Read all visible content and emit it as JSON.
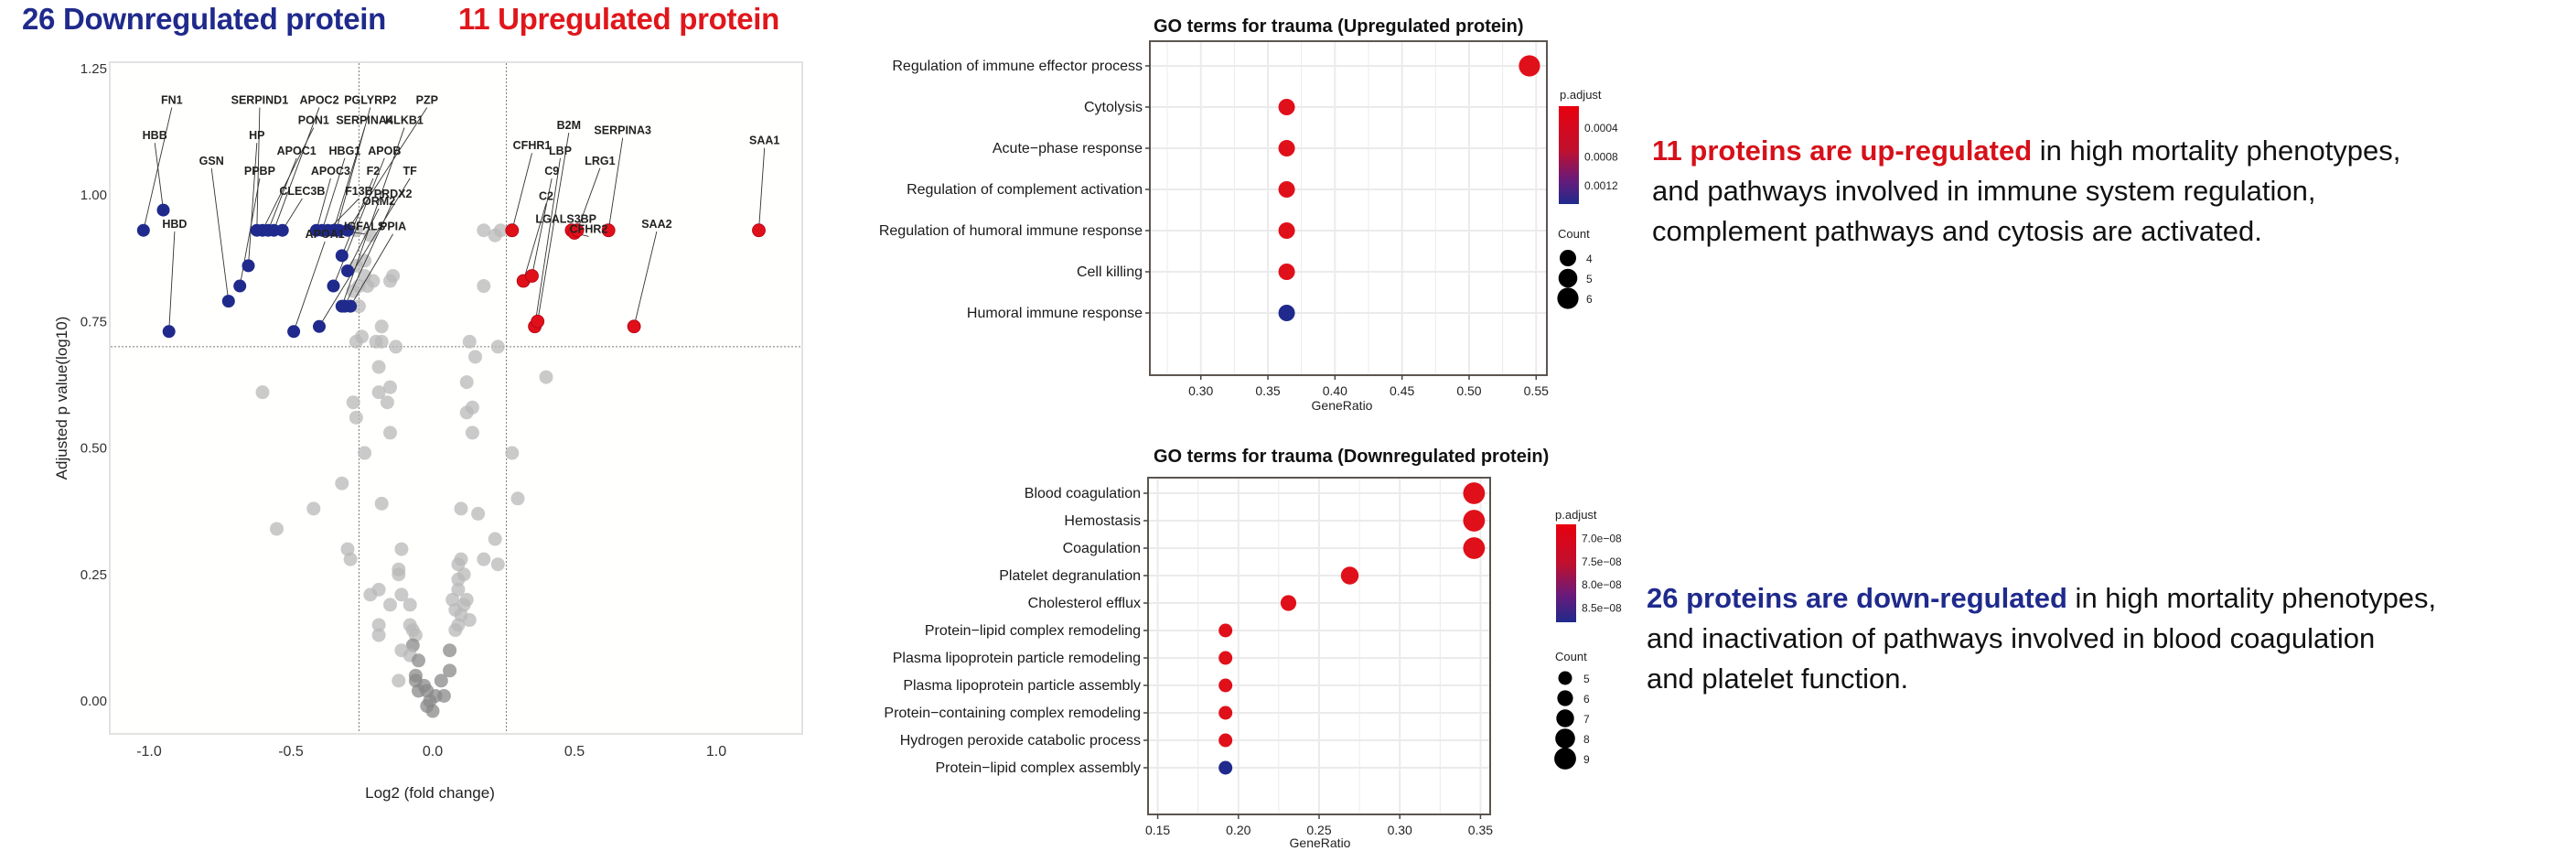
{
  "header": {
    "down_label": "26 Downregulated protein",
    "up_label": "11 Upregulated protein"
  },
  "colors": {
    "down": "#1f2a8c",
    "up": "#e0101a",
    "ns": "#b8b8b8",
    "ns_dark": "#8a8a8a"
  },
  "descriptions": {
    "up": {
      "highlight": "11 proteins are up-regulated",
      "line1_rest": " in high mortality phenotypes,",
      "line2": "and pathways involved in immune system regulation,",
      "line3": "complement pathways and cytosis are activated."
    },
    "down": {
      "highlight": "26 proteins are down-regulated",
      "line1_rest": " in high mortality phenotypes,",
      "line2": "and  inactivation of pathways involved in blood coagulation",
      "line3": "and platelet function."
    }
  },
  "chart_data": [
    {
      "type": "scatter",
      "title": "",
      "xlabel": "Log2 (fold change)",
      "ylabel": "Adjusted p value(log10)",
      "xlim": [
        -1.1,
        1.3
      ],
      "ylim": [
        -0.07,
        1.26
      ],
      "xticks": [
        -1.0,
        -0.5,
        0.0,
        0.5,
        1.0
      ],
      "xtick_labels": [
        "-1.0",
        "-0.5",
        "0.0",
        "0.5",
        "1.0"
      ],
      "yticks": [
        0.0,
        0.25,
        0.5,
        0.75,
        1.0,
        1.25
      ],
      "ytick_labels": [
        "0.00",
        "0.25",
        "0.50",
        "0.75",
        "1.00",
        "1.25"
      ],
      "thresholds": {
        "x": [
          -0.26,
          0.26
        ],
        "y": 0.7
      },
      "downregulated": [
        {
          "gene": "FN1",
          "x": -1.02,
          "y": 0.93,
          "lx": -0.92,
          "ly": 1.18
        },
        {
          "gene": "HBB",
          "x": -0.95,
          "y": 0.97,
          "lx": -0.98,
          "ly": 1.11
        },
        {
          "gene": "HBD",
          "x": -0.93,
          "y": 0.73,
          "lx": -0.91,
          "ly": 0.935
        },
        {
          "gene": "GSN",
          "x": -0.72,
          "y": 0.79,
          "lx": -0.78,
          "ly": 1.06
        },
        {
          "gene": "HP",
          "x": -0.65,
          "y": 0.86,
          "lx": -0.62,
          "ly": 1.11
        },
        {
          "gene": "PPBP",
          "x": -0.68,
          "y": 0.82,
          "lx": -0.61,
          "ly": 1.04
        },
        {
          "gene": "SERPIND1",
          "x": -0.62,
          "y": 0.93,
          "lx": -0.61,
          "ly": 1.18
        },
        {
          "gene": "PON1",
          "x": -0.6,
          "y": 0.93,
          "lx": -0.42,
          "ly": 1.14
        },
        {
          "gene": "APOC1",
          "x": -0.58,
          "y": 0.93,
          "lx": -0.48,
          "ly": 1.08
        },
        {
          "gene": "APOC2",
          "x": -0.56,
          "y": 0.93,
          "lx": -0.4,
          "ly": 1.18
        },
        {
          "gene": "CLEC3B",
          "x": -0.53,
          "y": 0.93,
          "lx": -0.46,
          "ly": 1.0
        },
        {
          "gene": "APOA1",
          "x": -0.49,
          "y": 0.73,
          "lx": -0.38,
          "ly": 0.915
        },
        {
          "gene": "APOC3",
          "x": -0.41,
          "y": 0.93,
          "lx": -0.36,
          "ly": 1.04
        },
        {
          "gene": "HBG1",
          "x": -0.39,
          "y": 0.93,
          "lx": -0.31,
          "ly": 1.08
        },
        {
          "gene": "F13B",
          "x": -0.37,
          "y": 0.93,
          "lx": -0.26,
          "ly": 1.0
        },
        {
          "gene": "SERPINA4",
          "x": -0.35,
          "y": 0.93,
          "lx": -0.24,
          "ly": 1.14
        },
        {
          "gene": "PGLYRP2",
          "x": -0.34,
          "y": 0.93,
          "lx": -0.22,
          "ly": 1.18
        },
        {
          "gene": "IGFALS",
          "x": -0.33,
          "y": 0.93,
          "lx": -0.24,
          "ly": 0.93
        },
        {
          "gene": "APOB",
          "x": -0.35,
          "y": 0.82,
          "lx": -0.17,
          "ly": 1.08
        },
        {
          "gene": "F2",
          "x": -0.32,
          "y": 0.88,
          "lx": -0.21,
          "ly": 1.04
        },
        {
          "gene": "ORM2",
          "x": -0.3,
          "y": 0.85,
          "lx": -0.19,
          "ly": 0.98
        },
        {
          "gene": "PRDX2",
          "x": -0.31,
          "y": 0.78,
          "lx": -0.14,
          "ly": 0.995
        },
        {
          "gene": "KLKB1",
          "x": -0.32,
          "y": 0.78,
          "lx": -0.1,
          "ly": 1.14
        },
        {
          "gene": "TF",
          "x": -0.4,
          "y": 0.74,
          "lx": -0.08,
          "ly": 1.04
        },
        {
          "gene": "PPIA",
          "x": -0.29,
          "y": 0.78,
          "lx": -0.14,
          "ly": 0.93
        },
        {
          "gene": "PZP",
          "x": -0.3,
          "y": 0.93,
          "lx": -0.02,
          "ly": 1.18
        }
      ],
      "upregulated": [
        {
          "gene": "CFHR1",
          "x": 0.28,
          "y": 0.93,
          "lx": 0.35,
          "ly": 1.09
        },
        {
          "gene": "C2",
          "x": 0.32,
          "y": 0.83,
          "lx": 0.4,
          "ly": 0.99
        },
        {
          "gene": "C9",
          "x": 0.35,
          "y": 0.84,
          "lx": 0.42,
          "ly": 1.04
        },
        {
          "gene": "LBP",
          "x": 0.36,
          "y": 0.74,
          "lx": 0.45,
          "ly": 1.08
        },
        {
          "gene": "B2M",
          "x": 0.37,
          "y": 0.75,
          "lx": 0.48,
          "ly": 1.13
        },
        {
          "gene": "LGALS3BP",
          "x": 0.49,
          "y": 0.93,
          "lx": 0.47,
          "ly": 0.945
        },
        {
          "gene": "CFHR2",
          "x": 0.5,
          "y": 0.925,
          "lx": 0.55,
          "ly": 0.925
        },
        {
          "gene": "LRG1",
          "x": 0.51,
          "y": 0.93,
          "lx": 0.59,
          "ly": 1.06
        },
        {
          "gene": "SERPINA3",
          "x": 0.62,
          "y": 0.93,
          "lx": 0.67,
          "ly": 1.12
        },
        {
          "gene": "SAA2",
          "x": 0.71,
          "y": 0.74,
          "lx": 0.79,
          "ly": 0.935
        },
        {
          "gene": "SAA1",
          "x": 1.15,
          "y": 0.93,
          "lx": 1.17,
          "ly": 1.1
        }
      ],
      "not_significant": [
        [
          -0.27,
          0.93
        ],
        [
          -0.22,
          0.92
        ],
        [
          -0.24,
          0.87
        ],
        [
          -0.27,
          0.86
        ],
        [
          -0.21,
          0.83
        ],
        [
          -0.26,
          0.82
        ],
        [
          -0.23,
          0.82
        ],
        [
          -0.28,
          0.81
        ],
        [
          -0.15,
          0.83
        ],
        [
          -0.14,
          0.84
        ],
        [
          -0.24,
          0.84
        ],
        [
          -0.26,
          0.78
        ],
        [
          -0.18,
          0.74
        ],
        [
          -0.25,
          0.72
        ],
        [
          -0.18,
          0.71
        ],
        [
          -0.27,
          0.71
        ],
        [
          0.18,
          0.93
        ],
        [
          0.22,
          0.92
        ],
        [
          0.18,
          0.82
        ],
        [
          0.24,
          0.93
        ],
        [
          0.23,
          0.7
        ],
        [
          0.13,
          0.71
        ],
        [
          0.15,
          0.68
        ],
        [
          0.4,
          0.64
        ],
        [
          -0.2,
          0.71
        ],
        [
          -0.13,
          0.7
        ],
        [
          -0.19,
          0.66
        ],
        [
          -0.15,
          0.62
        ],
        [
          -0.6,
          0.61
        ],
        [
          -0.19,
          0.61
        ],
        [
          -0.16,
          0.59
        ],
        [
          0.12,
          0.63
        ],
        [
          0.12,
          0.57
        ],
        [
          0.14,
          0.58
        ],
        [
          -0.28,
          0.59
        ],
        [
          -0.27,
          0.56
        ],
        [
          -0.15,
          0.53
        ],
        [
          0.14,
          0.53
        ],
        [
          -0.24,
          0.49
        ],
        [
          0.28,
          0.49
        ],
        [
          -0.32,
          0.43
        ],
        [
          0.3,
          0.4
        ],
        [
          -0.18,
          0.39
        ],
        [
          -0.42,
          0.38
        ],
        [
          0.1,
          0.38
        ],
        [
          0.16,
          0.37
        ],
        [
          -0.55,
          0.34
        ],
        [
          -0.3,
          0.3
        ],
        [
          -0.11,
          0.3
        ],
        [
          0.22,
          0.32
        ],
        [
          -0.29,
          0.28
        ],
        [
          0.18,
          0.28
        ],
        [
          0.1,
          0.28
        ],
        [
          0.09,
          0.27
        ],
        [
          0.23,
          0.27
        ],
        [
          -0.12,
          0.26
        ],
        [
          -0.12,
          0.25
        ],
        [
          0.11,
          0.25
        ],
        [
          0.09,
          0.24
        ],
        [
          0.09,
          0.22
        ],
        [
          -0.19,
          0.22
        ],
        [
          -0.22,
          0.21
        ],
        [
          -0.11,
          0.21
        ],
        [
          0.12,
          0.2
        ],
        [
          0.07,
          0.2
        ],
        [
          -0.15,
          0.19
        ],
        [
          -0.08,
          0.19
        ],
        [
          0.11,
          0.19
        ],
        [
          0.08,
          0.18
        ],
        [
          0.1,
          0.17
        ],
        [
          0.13,
          0.16
        ],
        [
          0.09,
          0.15
        ],
        [
          0.08,
          0.14
        ],
        [
          -0.08,
          0.15
        ],
        [
          -0.07,
          0.14
        ],
        [
          -0.19,
          0.15
        ],
        [
          -0.19,
          0.13
        ],
        [
          -0.06,
          0.13
        ],
        [
          -0.07,
          0.11
        ],
        [
          -0.11,
          0.1
        ],
        [
          0.06,
          0.1
        ],
        [
          -0.08,
          0.09
        ],
        [
          -0.05,
          0.08
        ],
        [
          0.06,
          0.06
        ],
        [
          -0.06,
          0.05
        ],
        [
          -0.12,
          0.04
        ],
        [
          0.03,
          0.04
        ],
        [
          -0.06,
          0.04
        ],
        [
          -0.03,
          0.03
        ],
        [
          -0.05,
          0.02
        ],
        [
          -0.02,
          0.02
        ],
        [
          0.01,
          0.01
        ],
        [
          0.04,
          0.01
        ],
        [
          -0.01,
          0.0
        ],
        [
          -0.02,
          -0.01
        ],
        [
          0.0,
          -0.02
        ]
      ]
    },
    {
      "type": "scatter",
      "title": "GO terms for trauma (Upregulated protein)",
      "xlabel": "GeneRatio",
      "ylabel": "",
      "xlim": [
        0.262,
        0.558
      ],
      "xticks": [
        0.3,
        0.35,
        0.4,
        0.45,
        0.5,
        0.55
      ],
      "xtick_labels": [
        "0.30",
        "0.35",
        "0.40",
        "0.45",
        "0.50",
        "0.55"
      ],
      "categories": [
        "Regulation of immune effector process",
        "Cytolysis",
        "Acute−phase response",
        "Regulation of complement activation",
        "Regulation of humoral immune response",
        "Cell killing",
        "Humoral immune response"
      ],
      "gene_ratio": [
        0.545,
        0.364,
        0.364,
        0.364,
        0.364,
        0.364,
        0.364
      ],
      "count": [
        6,
        4,
        4,
        4,
        4,
        4,
        4
      ],
      "p_adjust": [
        0.0001,
        0.0001,
        0.0001,
        0.0001,
        0.0001,
        0.0001,
        0.00145
      ],
      "color_legend": {
        "title": "p.adjust",
        "labels": [
          "0.0004",
          "0.0008",
          "0.0012"
        ],
        "range": [
          0.0001,
          0.00145
        ],
        "values": [
          0.0004,
          0.0008,
          0.0012
        ]
      },
      "size_legend": {
        "title": "Count",
        "labels": [
          "4",
          "5",
          "6"
        ],
        "values": [
          4,
          5,
          6
        ]
      }
    },
    {
      "type": "scatter",
      "title": "GO terms for trauma (Downregulated protein)",
      "xlabel": "GeneRatio",
      "ylabel": "",
      "xlim": [
        0.144,
        0.356
      ],
      "xticks": [
        0.15,
        0.2,
        0.25,
        0.3,
        0.35
      ],
      "xtick_labels": [
        "0.15",
        "0.20",
        "0.25",
        "0.30",
        "0.35"
      ],
      "categories": [
        "Blood coagulation",
        "Hemostasis",
        "Coagulation",
        "Platelet degranulation",
        "Cholesterol efflux",
        "Protein−lipid complex remodeling",
        "Plasma lipoprotein particle remodeling",
        "Plasma lipoprotein particle assembly",
        "Protein−containing complex remodeling",
        "Hydrogen peroxide catabolic process",
        "Protein−lipid complex assembly"
      ],
      "gene_ratio": [
        0.346,
        0.346,
        0.346,
        0.269,
        0.231,
        0.192,
        0.192,
        0.192,
        0.192,
        0.192,
        0.192
      ],
      "count": [
        9,
        9,
        9,
        7,
        6,
        5,
        5,
        5,
        5,
        5,
        5
      ],
      "p_adjust": [
        6.7e-08,
        6.7e-08,
        6.7e-08,
        6.7e-08,
        6.7e-08,
        6.7e-08,
        6.7e-08,
        6.7e-08,
        6.7e-08,
        6.7e-08,
        8.7e-08
      ],
      "color_legend": {
        "title": "p.adjust",
        "labels": [
          "7.0e−08",
          "7.5e−08",
          "8.0e−08",
          "8.5e−08"
        ],
        "range": [
          6.7e-08,
          8.8e-08
        ],
        "values": [
          7e-08,
          7.5e-08,
          8e-08,
          8.5e-08
        ]
      },
      "size_legend": {
        "title": "Count",
        "labels": [
          "5",
          "6",
          "7",
          "8",
          "9"
        ],
        "values": [
          5,
          6,
          7,
          8,
          9
        ]
      }
    }
  ]
}
